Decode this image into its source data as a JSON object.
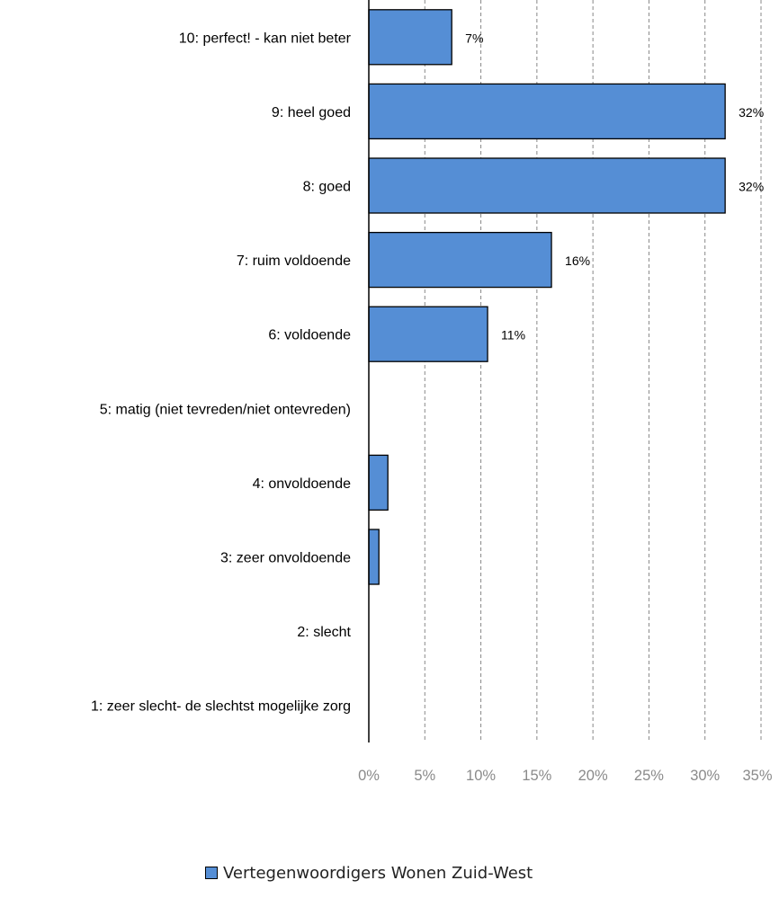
{
  "chart_data": {
    "type": "bar",
    "orientation": "horizontal",
    "categories": [
      "10: perfect! - kan niet beter",
      "9: heel goed",
      "8: goed",
      "7: ruim voldoende",
      "6: voldoende",
      "5: matig (niet tevreden/niet ontevreden)",
      "4: onvoldoende",
      "3: zeer onvoldoende",
      "2: slecht",
      "1: zeer slecht- de slechtst mogelijke zorg"
    ],
    "series": [
      {
        "name": "Vertegenwoordigers Wonen Zuid-West",
        "values": [
          7.4,
          31.8,
          31.8,
          16.3,
          10.6,
          0,
          1.7,
          0.9,
          0,
          0
        ],
        "data_labels": [
          "7%",
          "32%",
          "32%",
          "16%",
          "11%",
          "",
          "",
          "",
          "",
          ""
        ],
        "color": "#558ED5"
      }
    ],
    "x_ticks": [
      "0%",
      "5%",
      "10%",
      "15%",
      "20%",
      "25%",
      "30%",
      "35%"
    ],
    "xlim": [
      0,
      35
    ],
    "grid": "vertical dashed",
    "legend_position": "bottom",
    "bar_border_color": "#000000",
    "grid_color": "#888888",
    "tick_label_color": "#8a8a8a"
  }
}
